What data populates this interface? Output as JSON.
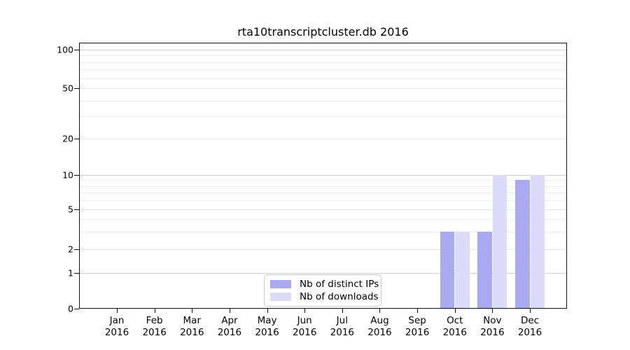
{
  "chart_data": {
    "type": "bar",
    "title": "rta10transcriptcluster.db 2016",
    "year_label": "2016",
    "categories": [
      "Jan",
      "Feb",
      "Mar",
      "Apr",
      "May",
      "Jun",
      "Jul",
      "Aug",
      "Sep",
      "Oct",
      "Nov",
      "Dec"
    ],
    "series": [
      {
        "name": "Nb of distinct IPs",
        "color": "#aaaaf2",
        "values": [
          0,
          0,
          0,
          0,
          0,
          0,
          0,
          0,
          0,
          3,
          3,
          9
        ]
      },
      {
        "name": "Nb of downloads",
        "color": "#dcdbf9",
        "values": [
          0,
          0,
          0,
          0,
          0,
          0,
          0,
          0,
          0,
          3,
          10,
          10
        ]
      }
    ],
    "y_axis": {
      "ticks": [
        0,
        1,
        2,
        5,
        10,
        20,
        50,
        100
      ],
      "minor_gridlines": [
        3,
        4,
        6,
        7,
        8,
        9,
        30,
        40,
        60,
        70,
        80,
        90
      ],
      "scale": "log-like with zero pinned at baseline",
      "ylim": [
        0,
        112
      ]
    },
    "grid": "on",
    "legend_position": "lower center"
  }
}
